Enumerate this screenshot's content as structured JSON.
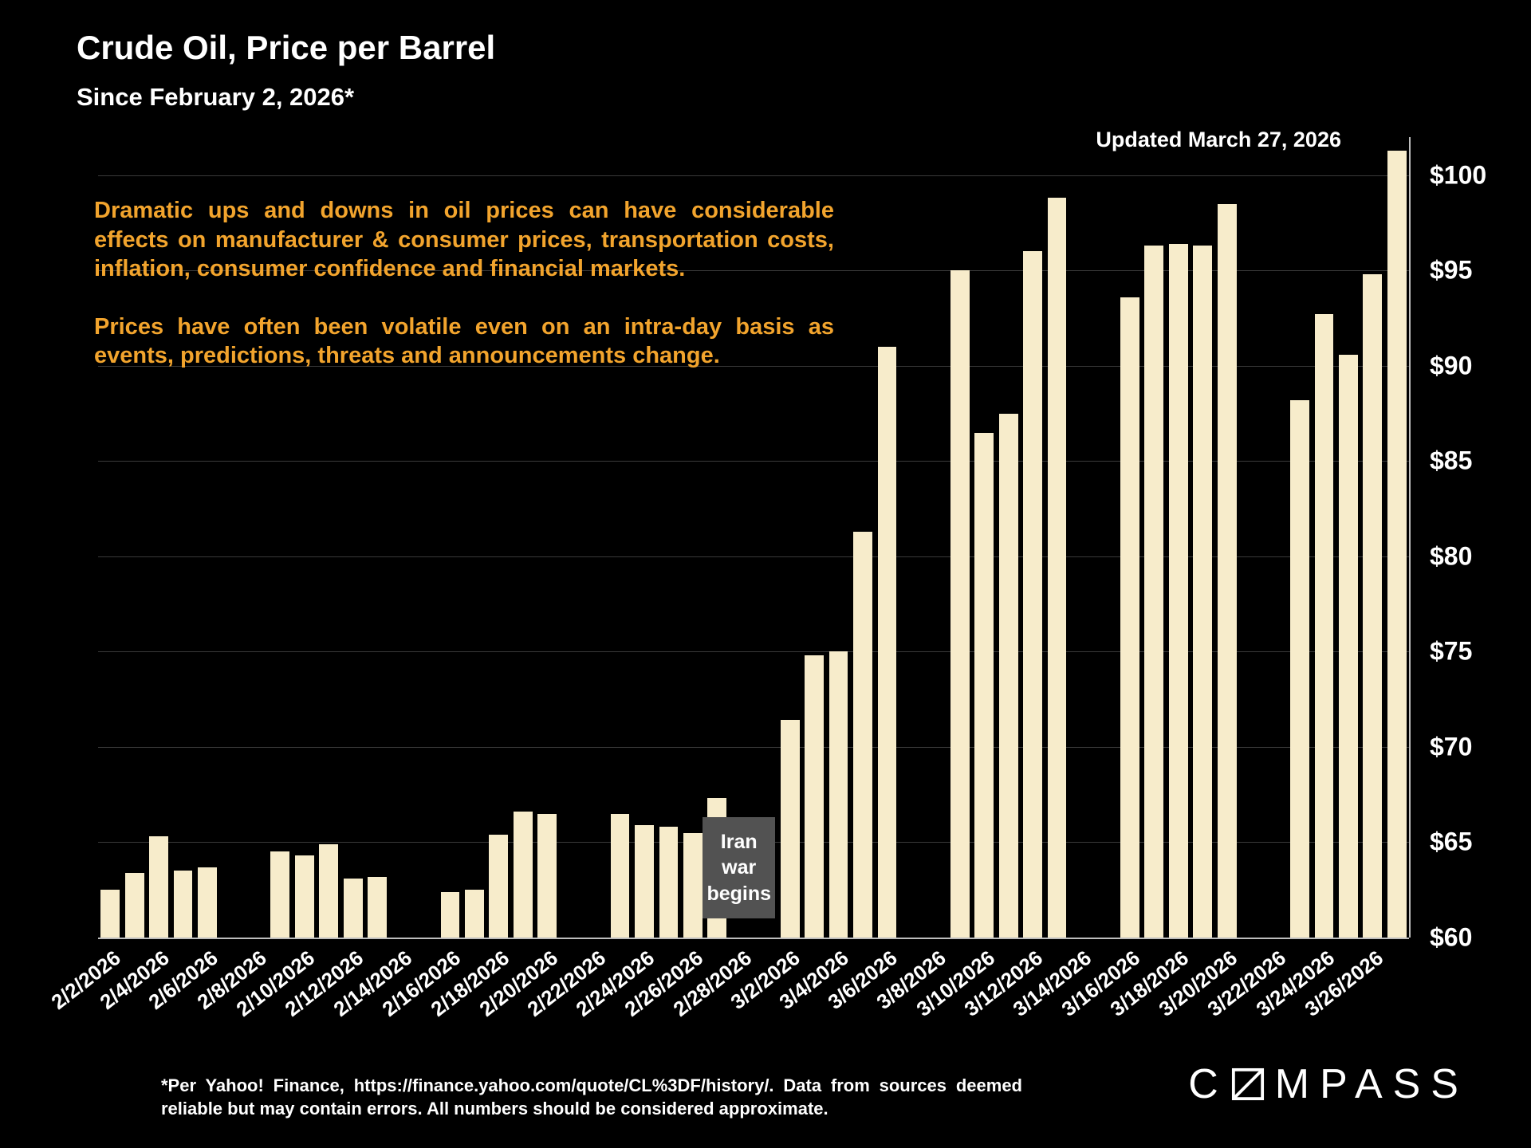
{
  "header": {
    "title": "Crude Oil, Price per Barrel",
    "subtitle": "Since February 2, 2026*",
    "updated": "Updated March 27, 2026"
  },
  "commentary": {
    "p1": "Dramatic ups and downs in oil prices can have considerable effects on manufacturer & consumer prices, transportation costs, inflation, consumer confidence and financial markets.",
    "p2": "Prices have often been volatile even on an intra-day basis as events, predictions, threats and announcements change."
  },
  "chart_data": {
    "type": "bar",
    "title": "Crude Oil, Price per Barrel",
    "xlabel": "",
    "ylabel": "",
    "ylim": [
      60,
      102
    ],
    "grid": true,
    "legend": false,
    "yticks": [
      {
        "value": 100,
        "label": "$100"
      },
      {
        "value": 95,
        "label": "$95"
      },
      {
        "value": 90,
        "label": "$90"
      },
      {
        "value": 85,
        "label": "$85"
      },
      {
        "value": 80,
        "label": "$80"
      },
      {
        "value": 75,
        "label": "$75"
      },
      {
        "value": 70,
        "label": "$70"
      },
      {
        "value": 65,
        "label": "$65"
      },
      {
        "value": 60,
        "label": "$60"
      }
    ],
    "xtick_labels": [
      "2/2/2026",
      "2/4/2026",
      "2/6/2026",
      "2/8/2026",
      "2/10/2026",
      "2/12/2026",
      "2/14/2026",
      "2/16/2026",
      "2/18/2026",
      "2/20/2026",
      "2/22/2026",
      "2/24/2026",
      "2/26/2026",
      "2/28/2026",
      "3/2/2026",
      "3/4/2026",
      "3/6/2026",
      "3/8/2026",
      "3/10/2026",
      "3/12/2026",
      "3/14/2026",
      "3/16/2026",
      "3/18/2026",
      "3/20/2026",
      "3/22/2026",
      "3/24/2026",
      "3/26/2026"
    ],
    "points": [
      {
        "date": "2/2/2026",
        "value": 62.5
      },
      {
        "date": "2/3/2026",
        "value": 63.4
      },
      {
        "date": "2/4/2026",
        "value": 65.3
      },
      {
        "date": "2/5/2026",
        "value": 63.5
      },
      {
        "date": "2/6/2026",
        "value": 63.7
      },
      {
        "date": "2/9/2026",
        "value": 64.5
      },
      {
        "date": "2/10/2026",
        "value": 64.3
      },
      {
        "date": "2/11/2026",
        "value": 64.9
      },
      {
        "date": "2/12/2026",
        "value": 63.1
      },
      {
        "date": "2/13/2026",
        "value": 63.2
      },
      {
        "date": "2/16/2026",
        "value": 62.4
      },
      {
        "date": "2/17/2026",
        "value": 62.5
      },
      {
        "date": "2/18/2026",
        "value": 65.4
      },
      {
        "date": "2/19/2026",
        "value": 66.6
      },
      {
        "date": "2/20/2026",
        "value": 66.5
      },
      {
        "date": "2/23/2026",
        "value": 66.5
      },
      {
        "date": "2/24/2026",
        "value": 65.9
      },
      {
        "date": "2/25/2026",
        "value": 65.8
      },
      {
        "date": "2/26/2026",
        "value": 65.5
      },
      {
        "date": "2/27/2026",
        "value": 67.3
      },
      {
        "date": "3/2/2026",
        "value": 71.4
      },
      {
        "date": "3/3/2026",
        "value": 74.8
      },
      {
        "date": "3/4/2026",
        "value": 75.0
      },
      {
        "date": "3/5/2026",
        "value": 81.3
      },
      {
        "date": "3/6/2026",
        "value": 91.0
      },
      {
        "date": "3/9/2026",
        "value": 95.0
      },
      {
        "date": "3/10/2026",
        "value": 86.5
      },
      {
        "date": "3/11/2026",
        "value": 87.5
      },
      {
        "date": "3/12/2026",
        "value": 96.0
      },
      {
        "date": "3/13/2026",
        "value": 98.8
      },
      {
        "date": "3/16/2026",
        "value": 93.6
      },
      {
        "date": "3/17/2026",
        "value": 96.3
      },
      {
        "date": "3/18/2026",
        "value": 96.4
      },
      {
        "date": "3/19/2026",
        "value": 96.3
      },
      {
        "date": "3/20/2026",
        "value": 98.5
      },
      {
        "date": "3/23/2026",
        "value": 88.2
      },
      {
        "date": "3/24/2026",
        "value": 92.7
      },
      {
        "date": "3/25/2026",
        "value": 90.6
      },
      {
        "date": "3/26/2026",
        "value": 94.8
      },
      {
        "date": "3/27/2026",
        "value": 101.3
      }
    ],
    "annotation": {
      "text": "Iran war begins",
      "lines": [
        "Iran",
        "war",
        "begins"
      ],
      "day_start": 24.9,
      "day_span": 3.0,
      "value_top": 66.3,
      "value_bottom": 61.0
    }
  },
  "footnote": "*Per Yahoo! Finance, https://finance.yahoo.com/quote/CL%3DF/history/. Data from sources deemed reliable but may contain errors. All numbers should be considered approximate.",
  "logo": {
    "pre": "C",
    "post": "MPASS"
  },
  "colors": {
    "background": "#000000",
    "bar_color": "#F7ECCB",
    "accent_text": "#F2A42D",
    "annotation_bg": "#525252",
    "grid": "#3a3a3a",
    "axis": "#bdbdbd",
    "text": "#ffffff"
  }
}
